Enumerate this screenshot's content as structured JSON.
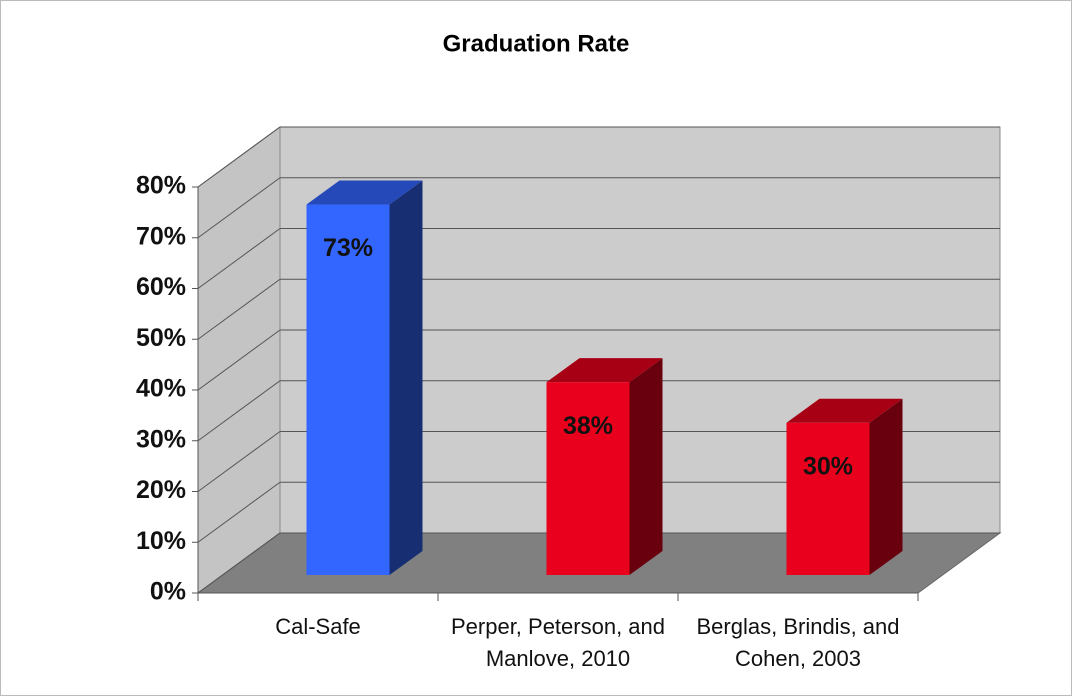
{
  "chart_data": {
    "type": "bar3d",
    "title": "Graduation Rate",
    "categories": [
      "Cal-Safe",
      "Perper, Peterson, and Manlove, 2010",
      "Berglas, Brindis, and Cohen, 2003"
    ],
    "values": [
      73,
      38,
      30
    ],
    "value_labels": [
      "73%",
      "38%",
      "30%"
    ],
    "colors": [
      "#3366ff",
      "#e8001c",
      "#e8001c"
    ],
    "ylim": [
      0,
      80
    ],
    "yticks": [
      {
        "value": 0,
        "label": "0%"
      },
      {
        "value": 10,
        "label": "10%"
      },
      {
        "value": 20,
        "label": "20%"
      },
      {
        "value": 30,
        "label": "30%"
      },
      {
        "value": 40,
        "label": "40%"
      },
      {
        "value": 50,
        "label": "50%"
      },
      {
        "value": 60,
        "label": "60%"
      },
      {
        "value": 70,
        "label": "70%"
      },
      {
        "value": 80,
        "label": "80%"
      }
    ],
    "grid": true
  }
}
